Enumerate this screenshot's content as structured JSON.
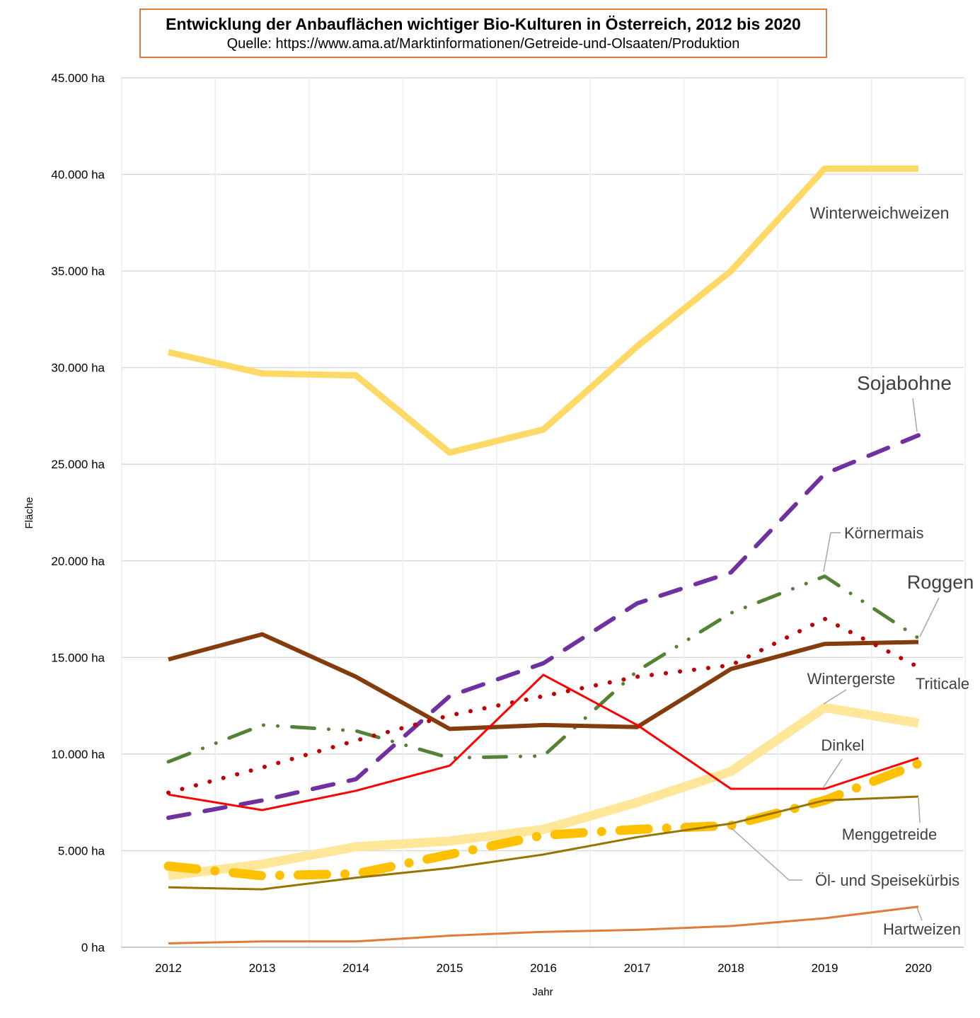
{
  "chart_data": {
    "type": "line",
    "title": "Entwicklung der Anbauflächen wichtiger Bio-Kulturen in Österreich, 2012 bis 2020",
    "subtitle": "Quelle: https://www.ama.at/Marktinformationen/Getreide-und-Olsaaten/Produktion",
    "xlabel": "Jahr",
    "ylabel": "Fläche",
    "x": [
      2012,
      2013,
      2014,
      2015,
      2016,
      2017,
      2018,
      2019,
      2020
    ],
    "ylim": [
      0,
      45000
    ],
    "yticks": [
      0,
      5000,
      10000,
      15000,
      20000,
      25000,
      30000,
      35000,
      40000,
      45000
    ],
    "ytick_labels": [
      "0 ha",
      "5.000 ha",
      "10.000 ha",
      "15.000 ha",
      "20.000 ha",
      "25.000 ha",
      "30.000 ha",
      "35.000 ha",
      "40.000 ha",
      "45.000 ha"
    ],
    "grid": true,
    "legend": "none (direct labels)",
    "series": [
      {
        "name": "Winterweichweizen",
        "values": [
          30800,
          29700,
          29600,
          25600,
          26800,
          31100,
          35000,
          40300,
          40300
        ],
        "color": "#FFD966",
        "style": "solid",
        "width": 9,
        "label_size": 23
      },
      {
        "name": "Sojabohne",
        "values": [
          6700,
          7600,
          8700,
          13000,
          14700,
          17800,
          19400,
          24500,
          26500
        ],
        "color": "#7030A0",
        "style": "dash",
        "width": 6,
        "label_size": 28
      },
      {
        "name": "Körnermais",
        "values": [
          9600,
          11500,
          11200,
          9800,
          9900,
          14300,
          17300,
          19200,
          16000
        ],
        "color": "#548235",
        "style": "dashdotdot",
        "width": 5,
        "label_size": 22
      },
      {
        "name": "Roggen",
        "values": [
          14900,
          16200,
          14000,
          11300,
          11500,
          11400,
          14400,
          15700,
          15800
        ],
        "color": "#843C0C",
        "style": "solid",
        "width": 6,
        "label_size": 27
      },
      {
        "name": "Triticale",
        "values": [
          8000,
          9300,
          10700,
          12000,
          13000,
          14000,
          14600,
          17000,
          14500
        ],
        "color": "#C00000",
        "style": "dot",
        "width": 6,
        "label_size": 22
      },
      {
        "name": "Wintergerste",
        "values": [
          3700,
          4300,
          5200,
          5500,
          6100,
          7500,
          9100,
          12400,
          11600
        ],
        "color": "#FFE699",
        "style": "solid",
        "width": 13,
        "label_size": 22
      },
      {
        "name": "Dinkel",
        "values": [
          7900,
          7100,
          8100,
          9400,
          14100,
          11500,
          8200,
          8200,
          9800
        ],
        "color": "#FF0000",
        "style": "solid",
        "width": 3,
        "label_size": 22
      },
      {
        "name": "Öl- und Speisekürbis",
        "values": [
          4200,
          3700,
          3800,
          4800,
          5800,
          6100,
          6300,
          7600,
          9500
        ],
        "color": "#FFC000",
        "style": "longdashdot",
        "width": 13,
        "label_size": 22
      },
      {
        "name": "Menggetreide",
        "values": [
          3100,
          3000,
          3600,
          4100,
          4800,
          5700,
          6400,
          7600,
          7800
        ],
        "color": "#997300",
        "style": "solid",
        "width": 3,
        "label_size": 22
      },
      {
        "name": "Hartweizen",
        "values": [
          200,
          300,
          300,
          600,
          800,
          900,
          1100,
          1500,
          2100
        ],
        "color": "#E07B39",
        "style": "solid",
        "width": 3,
        "label_size": 22
      }
    ]
  }
}
